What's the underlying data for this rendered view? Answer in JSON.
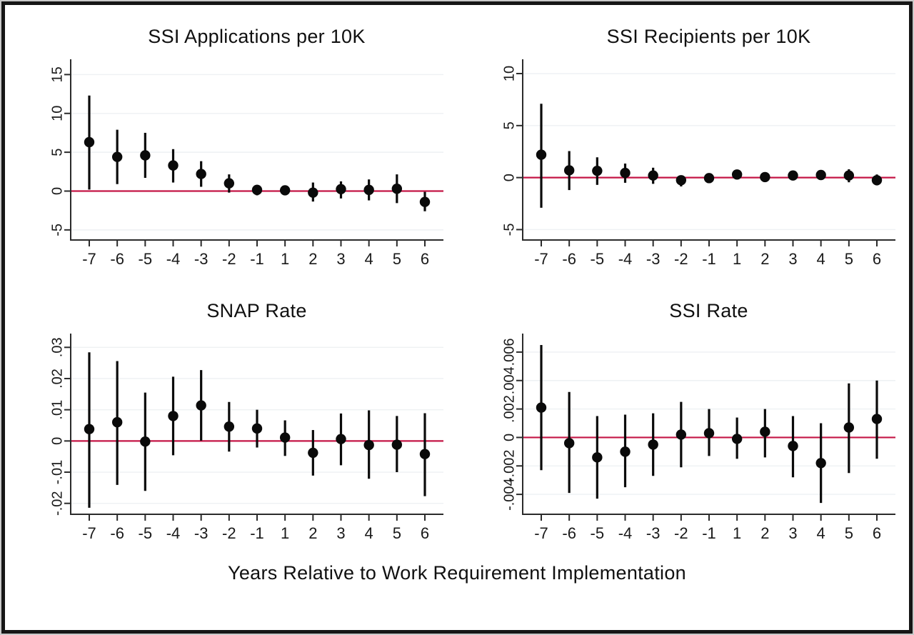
{
  "figure": {
    "xlabel": "Years Relative to Work Requirement Implementation"
  },
  "style": {
    "point_color": "#0a0a0a",
    "ci_color": "#0a0a0a",
    "zero_line_color": "#c41646",
    "axis_color": "#2b2b2b",
    "grid_color": "#eef1f3",
    "frame_border_color": "#161616",
    "frame_edge_color": "#c9c9c9",
    "background": "#ffffff"
  },
  "chart_data": [
    {
      "type": "scatter",
      "title": "SSI Applications per 10K",
      "x": [
        -7,
        -6,
        -5,
        -4,
        -3,
        -2,
        -1,
        1,
        2,
        3,
        4,
        5,
        6
      ],
      "x_tick_labels": [
        "-7",
        "-6",
        "-5",
        "-4",
        "-3",
        "-2",
        "-1",
        "1",
        "2",
        "3",
        "4",
        "5",
        "6"
      ],
      "estimates": [
        6.3,
        4.4,
        4.6,
        3.3,
        2.2,
        1.0,
        0.15,
        0.1,
        -0.2,
        0.25,
        0.15,
        0.3,
        -1.4
      ],
      "ci_low": [
        0.2,
        0.9,
        1.7,
        1.1,
        0.55,
        -0.2,
        -0.55,
        -0.5,
        -1.35,
        -0.95,
        -1.2,
        -1.55,
        -2.6
      ],
      "ci_high": [
        12.3,
        7.9,
        7.5,
        5.4,
        3.85,
        2.15,
        0.8,
        0.65,
        1.1,
        1.25,
        1.5,
        2.15,
        -0.1
      ],
      "yticks": [
        -5,
        0,
        5,
        10,
        15
      ],
      "ytick_labels": [
        "-5",
        "0",
        "5",
        "10",
        "15"
      ],
      "ylim": [
        -6.3,
        16.6
      ],
      "zero_line": true,
      "grid": true,
      "legend": "none"
    },
    {
      "type": "scatter",
      "title": "SSI Recipients per 10K",
      "x": [
        -7,
        -6,
        -5,
        -4,
        -3,
        -2,
        -1,
        1,
        2,
        3,
        4,
        5,
        6
      ],
      "x_tick_labels": [
        "-7",
        "-6",
        "-5",
        "-4",
        "-3",
        "-2",
        "-1",
        "1",
        "2",
        "3",
        "4",
        "5",
        "6"
      ],
      "estimates": [
        2.2,
        0.7,
        0.65,
        0.45,
        0.2,
        -0.25,
        -0.05,
        0.3,
        0.05,
        0.2,
        0.25,
        0.2,
        -0.25
      ],
      "ci_low": [
        -2.9,
        -1.2,
        -0.7,
        -0.5,
        -0.6,
        -0.85,
        -0.5,
        -0.1,
        -0.35,
        -0.2,
        -0.15,
        -0.45,
        -0.75
      ],
      "ci_high": [
        7.1,
        2.55,
        1.95,
        1.35,
        0.95,
        0.2,
        0.4,
        0.75,
        0.5,
        0.6,
        0.65,
        0.8,
        0.3
      ],
      "yticks": [
        -5,
        0,
        5,
        10
      ],
      "ytick_labels": [
        "-5",
        "0",
        "5",
        "10"
      ],
      "ylim": [
        -6.0,
        11.1
      ],
      "zero_line": true,
      "grid": true,
      "legend": "none"
    },
    {
      "type": "scatter",
      "title": "SNAP Rate",
      "x": [
        -7,
        -6,
        -5,
        -4,
        -3,
        -2,
        -1,
        1,
        2,
        3,
        4,
        5,
        6
      ],
      "x_tick_labels": [
        "-7",
        "-6",
        "-5",
        "-4",
        "-3",
        "-2",
        "-1",
        "1",
        "2",
        "3",
        "4",
        "5",
        "6"
      ],
      "estimates": [
        0.0038,
        0.006,
        -0.0002,
        0.008,
        0.0114,
        0.0046,
        0.004,
        0.0011,
        -0.0038,
        0.0006,
        -0.0013,
        -0.0012,
        -0.0042
      ],
      "ci_low": [
        -0.0214,
        -0.0141,
        -0.016,
        -0.0046,
        0.0001,
        -0.0034,
        -0.0021,
        -0.0048,
        -0.0111,
        -0.0078,
        -0.0121,
        -0.01,
        -0.0177
      ],
      "ci_high": [
        0.0284,
        0.0256,
        0.0155,
        0.0206,
        0.0227,
        0.0125,
        0.01,
        0.0066,
        0.0035,
        0.0088,
        0.0098,
        0.008,
        0.0089
      ],
      "yticks": [
        -0.02,
        -0.01,
        0,
        0.01,
        0.02,
        0.03
      ],
      "ytick_labels": [
        "-.02",
        "-.01",
        "0",
        ".01",
        ".02",
        ".03"
      ],
      "ylim": [
        -0.0235,
        0.0335
      ],
      "zero_line": true,
      "grid": true,
      "legend": "none"
    },
    {
      "type": "scatter",
      "title": "SSI Rate",
      "x": [
        -7,
        -6,
        -5,
        -4,
        -3,
        -2,
        -1,
        1,
        2,
        3,
        4,
        5,
        6
      ],
      "x_tick_labels": [
        "-7",
        "-6",
        "-5",
        "-4",
        "-3",
        "-2",
        "-1",
        "1",
        "2",
        "3",
        "4",
        "5",
        "6"
      ],
      "estimates": [
        0.0021,
        -0.0004,
        -0.0014,
        -0.001,
        -0.0005,
        0.0002,
        0.0003,
        -0.0001,
        0.0004,
        -0.0006,
        -0.0018,
        0.0007,
        0.0013
      ],
      "ci_low": [
        -0.0023,
        -0.0039,
        -0.0043,
        -0.0035,
        -0.0027,
        -0.0021,
        -0.0013,
        -0.0015,
        -0.0014,
        -0.0028,
        -0.0046,
        -0.0025,
        -0.0015
      ],
      "ci_high": [
        0.0065,
        0.0032,
        0.0015,
        0.0016,
        0.0017,
        0.0025,
        0.002,
        0.0014,
        0.002,
        0.0015,
        0.001,
        0.0038,
        0.004
      ],
      "yticks": [
        -0.004,
        -0.002,
        0,
        0.002,
        0.004,
        0.006
      ],
      "ytick_labels": [
        "-.004",
        "-.002",
        "0",
        ".002",
        ".004",
        ".006"
      ],
      "ylim": [
        -0.0054,
        0.0071
      ],
      "zero_line": true,
      "grid": true,
      "legend": "none"
    }
  ]
}
